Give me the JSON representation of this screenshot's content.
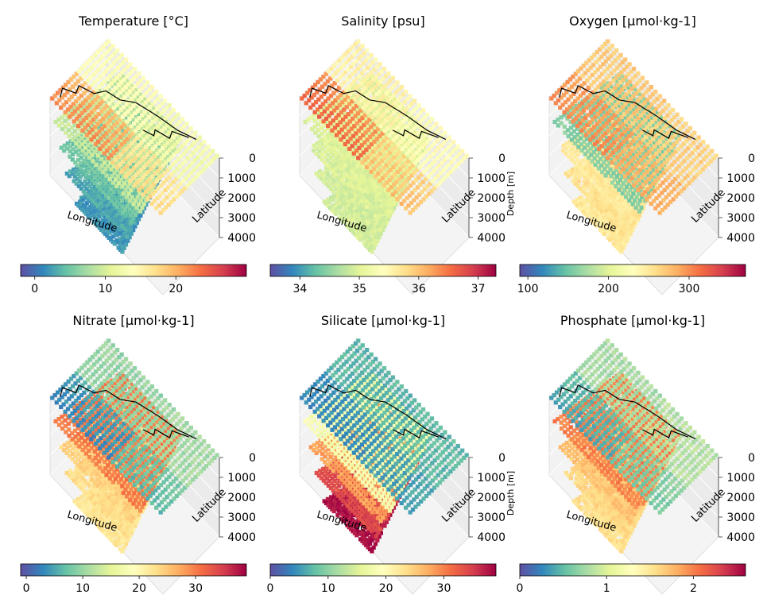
{
  "figure": {
    "rows": 2,
    "cols": 3
  },
  "chart_data": [
    {
      "type": "scatter",
      "projection": "3d",
      "title": "Temperature [°C]",
      "xlabel": "Longitude",
      "ylabel": "Latitude",
      "zlabel": "Depth [m]",
      "zticks": [
        0,
        1000,
        2000,
        3000,
        4000
      ],
      "zlim": [
        0,
        4000
      ],
      "show_zlabel": false,
      "colormap": "Spectral_r",
      "colorbar": {
        "range": [
          -2,
          30
        ],
        "ticks": [
          0,
          10,
          20
        ]
      },
      "layers": [
        {
          "depth": 0,
          "surface_value": 22,
          "shelf_value": 11
        },
        {
          "depth": 1000,
          "value": 9
        },
        {
          "depth": 2000,
          "value": 5
        },
        {
          "depth": 3000,
          "value": 3
        },
        {
          "depth": 4000,
          "value": 2
        }
      ]
    },
    {
      "type": "scatter",
      "projection": "3d",
      "title": "Salinity [psu]",
      "xlabel": "Longitude",
      "ylabel": "Latitude",
      "zlabel": "Depth [m]",
      "zticks": [
        0,
        1000,
        2000,
        3000,
        4000
      ],
      "zlim": [
        0,
        4000
      ],
      "show_zlabel": true,
      "colormap": "Spectral_r",
      "colorbar": {
        "range": [
          33.5,
          37.3
        ],
        "ticks": [
          34,
          35,
          36,
          37
        ]
      },
      "layers": [
        {
          "depth": 0,
          "surface_value": 36.6,
          "shelf_value": 35.2
        },
        {
          "depth": 1000,
          "value": 35.0
        },
        {
          "depth": 2000,
          "value": 34.95
        },
        {
          "depth": 3000,
          "value": 34.9
        },
        {
          "depth": 4000,
          "value": 34.9
        }
      ]
    },
    {
      "type": "scatter",
      "projection": "3d",
      "title": "Oxygen [µmol·kg-1]",
      "xlabel": "Longitude",
      "ylabel": "Latitude",
      "zlabel": "Depth [m]",
      "zticks": [
        0,
        1000,
        2000,
        3000,
        4000
      ],
      "zlim": [
        0,
        4000
      ],
      "show_zlabel": false,
      "colormap": "Spectral_r",
      "colorbar": {
        "range": [
          90,
          370
        ],
        "ticks": [
          100,
          200,
          300
        ]
      },
      "layers": [
        {
          "depth": 0,
          "surface_value": 300,
          "shelf_value": 260
        },
        {
          "depth": 1000,
          "value": 160
        },
        {
          "depth": 2000,
          "value": 250
        },
        {
          "depth": 3000,
          "value": 255
        },
        {
          "depth": 4000,
          "value": 250
        }
      ]
    },
    {
      "type": "scatter",
      "projection": "3d",
      "title": "Nitrate [µmol·kg-1]",
      "xlabel": "Longitude",
      "ylabel": "Latitude",
      "zlabel": "Depth [m]",
      "zticks": [
        0,
        1000,
        2000,
        3000,
        4000
      ],
      "zlim": [
        0,
        4000
      ],
      "show_zlabel": false,
      "colormap": "Spectral_r",
      "colorbar": {
        "range": [
          -1,
          39
        ],
        "ticks": [
          0,
          10,
          20,
          30
        ]
      },
      "layers": [
        {
          "depth": 0,
          "surface_value": 3,
          "shelf_value": 12
        },
        {
          "depth": 1000,
          "value": 30
        },
        {
          "depth": 2000,
          "value": 24
        },
        {
          "depth": 3000,
          "value": 23
        },
        {
          "depth": 4000,
          "value": 22
        }
      ]
    },
    {
      "type": "scatter",
      "projection": "3d",
      "title": "Silicate [µmol·kg-1]",
      "xlabel": "Longitude",
      "ylabel": "Latitude",
      "zlabel": "Depth [m]",
      "zticks": [
        0,
        1000,
        2000,
        3000,
        4000
      ],
      "zlim": [
        0,
        4000
      ],
      "show_zlabel": true,
      "colormap": "Spectral_r",
      "colorbar": {
        "range": [
          0,
          39
        ],
        "ticks": [
          0,
          10,
          20,
          30
        ]
      },
      "layers": [
        {
          "depth": 0,
          "surface_value": 4,
          "shelf_value": 8
        },
        {
          "depth": 1000,
          "value": 18
        },
        {
          "depth": 2000,
          "value": 28
        },
        {
          "depth": 3000,
          "value": 34
        },
        {
          "depth": 4000,
          "value": 38
        }
      ]
    },
    {
      "type": "scatter",
      "projection": "3d",
      "title": "Phosphate [µmol·kg-1]",
      "xlabel": "Longitude",
      "ylabel": "Latitude",
      "zlabel": "Depth [m]",
      "zticks": [
        0,
        1000,
        2000,
        3000,
        4000
      ],
      "zlim": [
        0,
        4000
      ],
      "show_zlabel": false,
      "colormap": "Spectral_r",
      "colorbar": {
        "range": [
          0,
          2.6
        ],
        "ticks": [
          0,
          1,
          2
        ]
      },
      "layers": [
        {
          "depth": 0,
          "surface_value": 0.4,
          "shelf_value": 0.9
        },
        {
          "depth": 1000,
          "value": 2.0
        },
        {
          "depth": 2000,
          "value": 1.7
        },
        {
          "depth": 3000,
          "value": 1.6
        },
        {
          "depth": 4000,
          "value": 1.55
        }
      ]
    }
  ]
}
